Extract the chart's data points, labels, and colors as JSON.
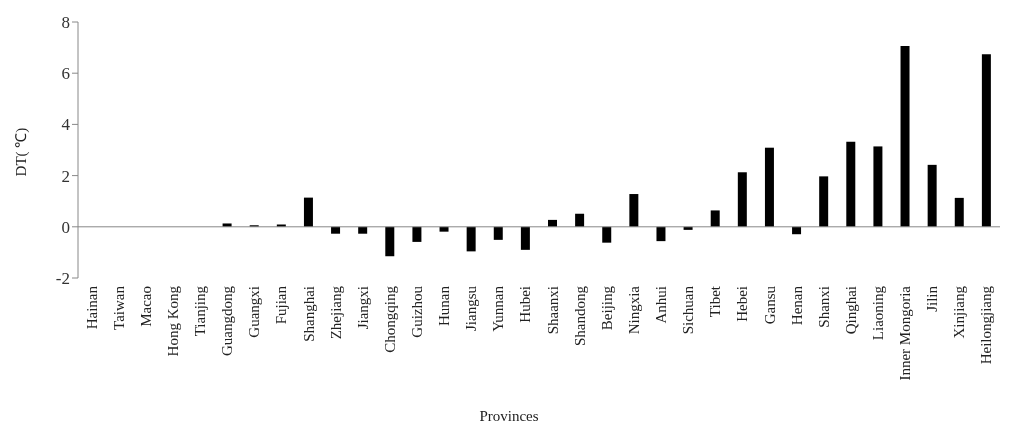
{
  "chart_data": {
    "type": "bar",
    "xlabel": "Provinces",
    "ylabel": "DT( ℃)",
    "categories": [
      "Hainan",
      "Taiwan",
      "Macao",
      "Hong Kong",
      "Tianjing",
      "Guangdong",
      "Guangxi",
      "Fujian",
      "Shanghai",
      "Zhejiang",
      "Jiangxi",
      "Chongqing",
      "Guizhou",
      "Hunan",
      "Jiangsu",
      "Yunnan",
      "Hubei",
      "Shaanxi",
      "Shandong",
      "Beijing",
      "Ningxia",
      "Anhui",
      "Sichuan",
      "Tibet",
      "Hebei",
      "Gansu",
      "Henan",
      "Shanxi",
      "Qinghai",
      "Liaoning",
      "Inner Mongoria",
      "Jilin",
      "Xinjiang",
      "Heilongjiang"
    ],
    "values": [
      null,
      null,
      null,
      null,
      null,
      0.13,
      0.06,
      0.09,
      1.14,
      -0.27,
      -0.27,
      -1.15,
      -0.59,
      -0.19,
      -0.96,
      -0.51,
      -0.9,
      0.27,
      0.51,
      -0.62,
      1.28,
      -0.56,
      -0.12,
      0.64,
      2.13,
      3.09,
      -0.29,
      1.97,
      3.32,
      3.14,
      7.06,
      2.42,
      1.13,
      6.74
    ],
    "color": "#000000",
    "ylim": [
      -2,
      8
    ],
    "yticks": [
      -2,
      0,
      2,
      4,
      6,
      8
    ],
    "ref_lines": [
      {
        "axis": "y",
        "value": 0,
        "color": "#888888"
      }
    ]
  }
}
